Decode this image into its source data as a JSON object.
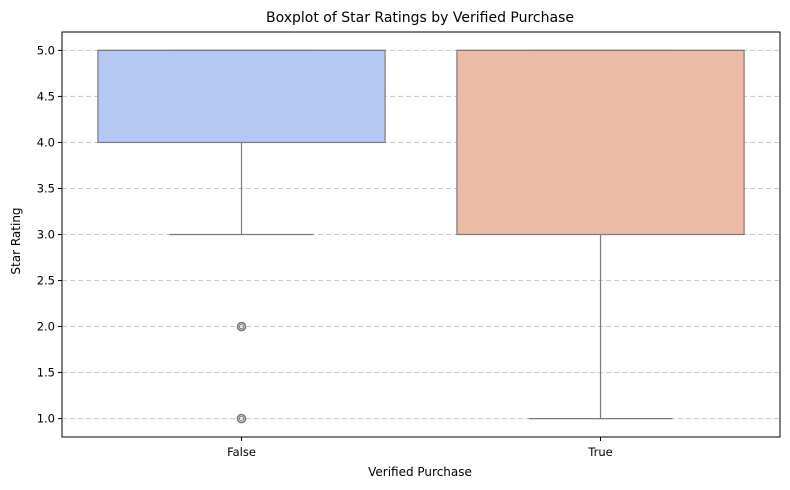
{
  "chart_data": {
    "type": "box",
    "title": "Boxplot of Star Ratings by Verified Purchase",
    "xlabel": "Verified Purchase",
    "ylabel": "Star Rating",
    "categories": [
      "False",
      "True"
    ],
    "ylim": [
      0.8,
      5.2
    ],
    "yticks": [
      1.0,
      1.5,
      2.0,
      2.5,
      3.0,
      3.5,
      4.0,
      4.5,
      5.0
    ],
    "ytick_labels": [
      "1.0",
      "1.5",
      "2.0",
      "2.5",
      "3.0",
      "3.5",
      "4.0",
      "4.5",
      "5.0"
    ],
    "grid": "y-dashed",
    "boxes": [
      {
        "category": "False",
        "whisker_low": 3.0,
        "q1": 4.0,
        "median": 5.0,
        "q3": 5.0,
        "whisker_high": 5.0,
        "outliers": [
          2.0,
          1.0
        ],
        "color": "#b3c8f3"
      },
      {
        "category": "True",
        "whisker_low": 1.0,
        "q1": 3.0,
        "median": 5.0,
        "q3": 5.0,
        "whisker_high": 5.0,
        "outliers": [],
        "color": "#ecbba5"
      }
    ]
  }
}
